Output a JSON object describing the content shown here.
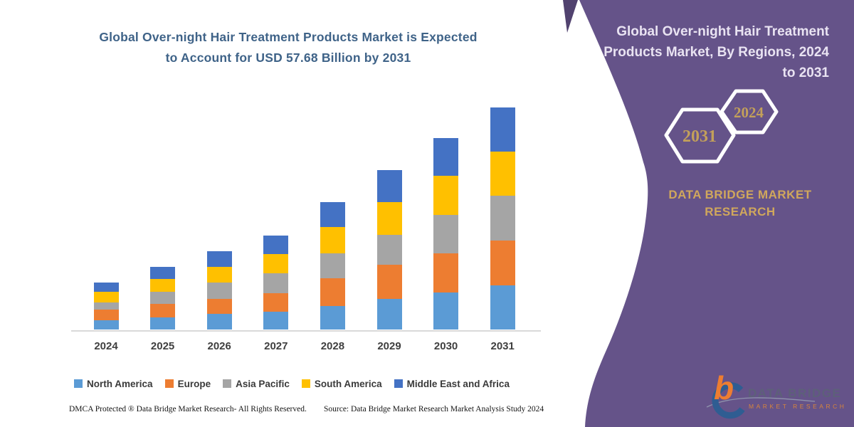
{
  "chart": {
    "title_line1": "Global Over-night Hair Treatment Products Market is Expected",
    "title_line2": "to Account for USD 57.68 Billion by 2031",
    "title_color": "#3f6388"
  },
  "chart_data": {
    "type": "bar",
    "stacked": true,
    "title": "Global Over-night Hair Treatment Products Market is Expected to Account for USD 57.68 Billion by 2031",
    "units": "USD Billion (estimated from bar heights)",
    "key_value": "USD 57.68 Billion by 2031",
    "categories": [
      "2024",
      "2025",
      "2026",
      "2027",
      "2028",
      "2029",
      "2030",
      "2031"
    ],
    "series": [
      {
        "name": "North America",
        "color": "#5B9BD5",
        "values": [
          2.4,
          3.1,
          4.0,
          4.6,
          6.2,
          8.0,
          9.6,
          11.4
        ]
      },
      {
        "name": "Europe",
        "color": "#ED7D31",
        "values": [
          2.7,
          3.5,
          4.0,
          4.9,
          7.1,
          8.9,
          10.2,
          11.7
        ]
      },
      {
        "name": "Asia Pacific",
        "color": "#A5A5A5",
        "values": [
          2.0,
          3.2,
          4.3,
          5.2,
          6.5,
          7.7,
          9.9,
          11.7
        ]
      },
      {
        "name": "South America",
        "color": "#FFC000",
        "values": [
          2.8,
          3.4,
          4.0,
          4.9,
          6.8,
          8.5,
          10.2,
          11.4
        ]
      },
      {
        "name": "Middle East and Africa",
        "color": "#4472C4",
        "values": [
          2.4,
          3.1,
          4.0,
          4.9,
          6.5,
          8.4,
          9.9,
          11.4
        ]
      }
    ],
    "totals_estimated": [
      12.3,
      16.3,
      20.3,
      24.5,
      33.1,
      41.5,
      49.8,
      57.6
    ],
    "ylim": [
      0,
      60
    ],
    "gridlines": false,
    "y_axis_visible": false,
    "legend_position": "bottom"
  },
  "footer": {
    "dmca": "DMCA Protected ® Data Bridge Market Research-  All Rights Reserved.",
    "source": "Source: Data Bridge Market Research  Market Analysis Study 2024"
  },
  "panel": {
    "bg": "#655389",
    "dark_accent": "#51426f",
    "title_lines": [
      "Global Over-night Hair Treatment",
      "Products Market, By Regions, 2024",
      "to 2031"
    ],
    "title_color": "#e9e3f2",
    "hexagons": [
      {
        "label": "2031"
      },
      {
        "label": "2024"
      }
    ],
    "hex_text_color": "#c3a05a",
    "brand_line1": "DATA BRIDGE MARKET",
    "brand_line2": "RESEARCH",
    "brand_color": "#d0a75c",
    "logo": {
      "text_top": "DATA BRIDGE",
      "text_bottom": "MARKET RESEARCH",
      "b_color": "#ED7D31",
      "d_color": "#2f5d92"
    }
  }
}
